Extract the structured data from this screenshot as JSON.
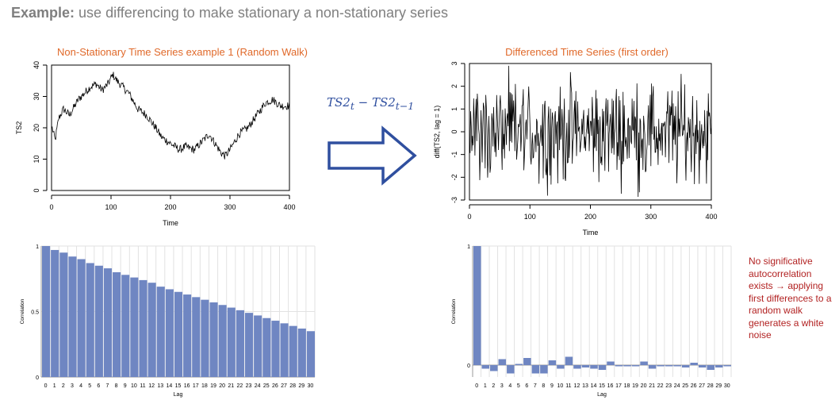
{
  "heading": {
    "bold": "Example:",
    "rest": " use differencing to make stationary a non-stationary series"
  },
  "formula": {
    "text": "TS2",
    "sub1": "t",
    "minus": " − ",
    "sub2": "t−1"
  },
  "note": "No significative autocorrelation exists → applying first differences to a random walk generates a white noise",
  "colors": {
    "title": "#e0692a",
    "bar": "#6f86c2",
    "arrow": "#2f4f9f",
    "note": "#b22222",
    "heading": "#7f7f7f"
  },
  "chart_data": [
    {
      "type": "line",
      "title": "Non-Stationary Time Series example 1 (Random Walk)",
      "xlabel": "Time",
      "ylabel": "TS2",
      "xlim": [
        0,
        400
      ],
      "ylim": [
        0,
        40
      ],
      "xticks": [
        0,
        100,
        200,
        300,
        400
      ],
      "yticks": [
        0,
        10,
        20,
        30,
        40
      ],
      "keypoints": [
        [
          1,
          20
        ],
        [
          6,
          16
        ],
        [
          12,
          23
        ],
        [
          20,
          26
        ],
        [
          30,
          24
        ],
        [
          45,
          29
        ],
        [
          55,
          31
        ],
        [
          65,
          33
        ],
        [
          75,
          34
        ],
        [
          85,
          32
        ],
        [
          95,
          34
        ],
        [
          103,
          37
        ],
        [
          110,
          35
        ],
        [
          120,
          33
        ],
        [
          130,
          31
        ],
        [
          145,
          26
        ],
        [
          160,
          24
        ],
        [
          175,
          20
        ],
        [
          185,
          17
        ],
        [
          200,
          15
        ],
        [
          215,
          13
        ],
        [
          225,
          14
        ],
        [
          240,
          13
        ],
        [
          255,
          16
        ],
        [
          265,
          18
        ],
        [
          275,
          15
        ],
        [
          285,
          12
        ],
        [
          292,
          11
        ],
        [
          300,
          13
        ],
        [
          315,
          18
        ],
        [
          330,
          20
        ],
        [
          345,
          24
        ],
        [
          360,
          28
        ],
        [
          372,
          29
        ],
        [
          385,
          27
        ],
        [
          400,
          27
        ]
      ]
    },
    {
      "type": "line",
      "title": "Differenced Time Series (first order)",
      "xlabel": "Time",
      "ylabel": "diff(TS2, lag = 1)",
      "xlim": [
        0,
        400
      ],
      "ylim": [
        -3,
        3
      ],
      "xticks": [
        0,
        100,
        200,
        300,
        400
      ],
      "yticks": [
        -3,
        -2,
        -1,
        0,
        1,
        2,
        3
      ]
    },
    {
      "type": "bar",
      "xlabel": "Lag",
      "ylabel": "Correlation",
      "categories": [
        "0",
        "1",
        "2",
        "3",
        "4",
        "5",
        "6",
        "7",
        "8",
        "9",
        "10",
        "11",
        "12",
        "13",
        "14",
        "15",
        "16",
        "17",
        "18",
        "19",
        "20",
        "21",
        "22",
        "23",
        "24",
        "25",
        "26",
        "27",
        "28",
        "29",
        "30"
      ],
      "values": [
        1,
        0.97,
        0.95,
        0.92,
        0.9,
        0.87,
        0.85,
        0.83,
        0.8,
        0.78,
        0.76,
        0.74,
        0.72,
        0.69,
        0.67,
        0.65,
        0.63,
        0.61,
        0.59,
        0.57,
        0.55,
        0.53,
        0.51,
        0.49,
        0.47,
        0.45,
        0.43,
        0.41,
        0.39,
        0.37,
        0.35
      ],
      "yticks": [
        0,
        0.5,
        1
      ],
      "yticklabels": [
        "0",
        "0.5",
        "1"
      ],
      "ylim": [
        0,
        1
      ]
    },
    {
      "type": "bar",
      "xlabel": "Lag",
      "ylabel": "Correlation",
      "categories": [
        "0",
        "1",
        "2",
        "3",
        "4",
        "5",
        "6",
        "7",
        "8",
        "9",
        "10",
        "11",
        "12",
        "13",
        "14",
        "15",
        "16",
        "17",
        "18",
        "19",
        "20",
        "21",
        "22",
        "23",
        "24",
        "25",
        "26",
        "27",
        "28",
        "29",
        "30"
      ],
      "values": [
        1,
        -0.03,
        -0.05,
        0.05,
        -0.07,
        0.01,
        0.06,
        -0.07,
        -0.07,
        0.04,
        -0.03,
        0.07,
        -0.03,
        -0.02,
        -0.03,
        -0.04,
        0.03,
        -0.01,
        -0.01,
        -0.01,
        0.03,
        -0.03,
        -0.01,
        -0.01,
        -0.01,
        -0.02,
        0.02,
        -0.02,
        -0.04,
        -0.02,
        -0.01
      ],
      "yticks": [
        0,
        1
      ],
      "yticklabels": [
        "0",
        "1"
      ],
      "ylim": [
        -0.1,
        1
      ]
    }
  ]
}
